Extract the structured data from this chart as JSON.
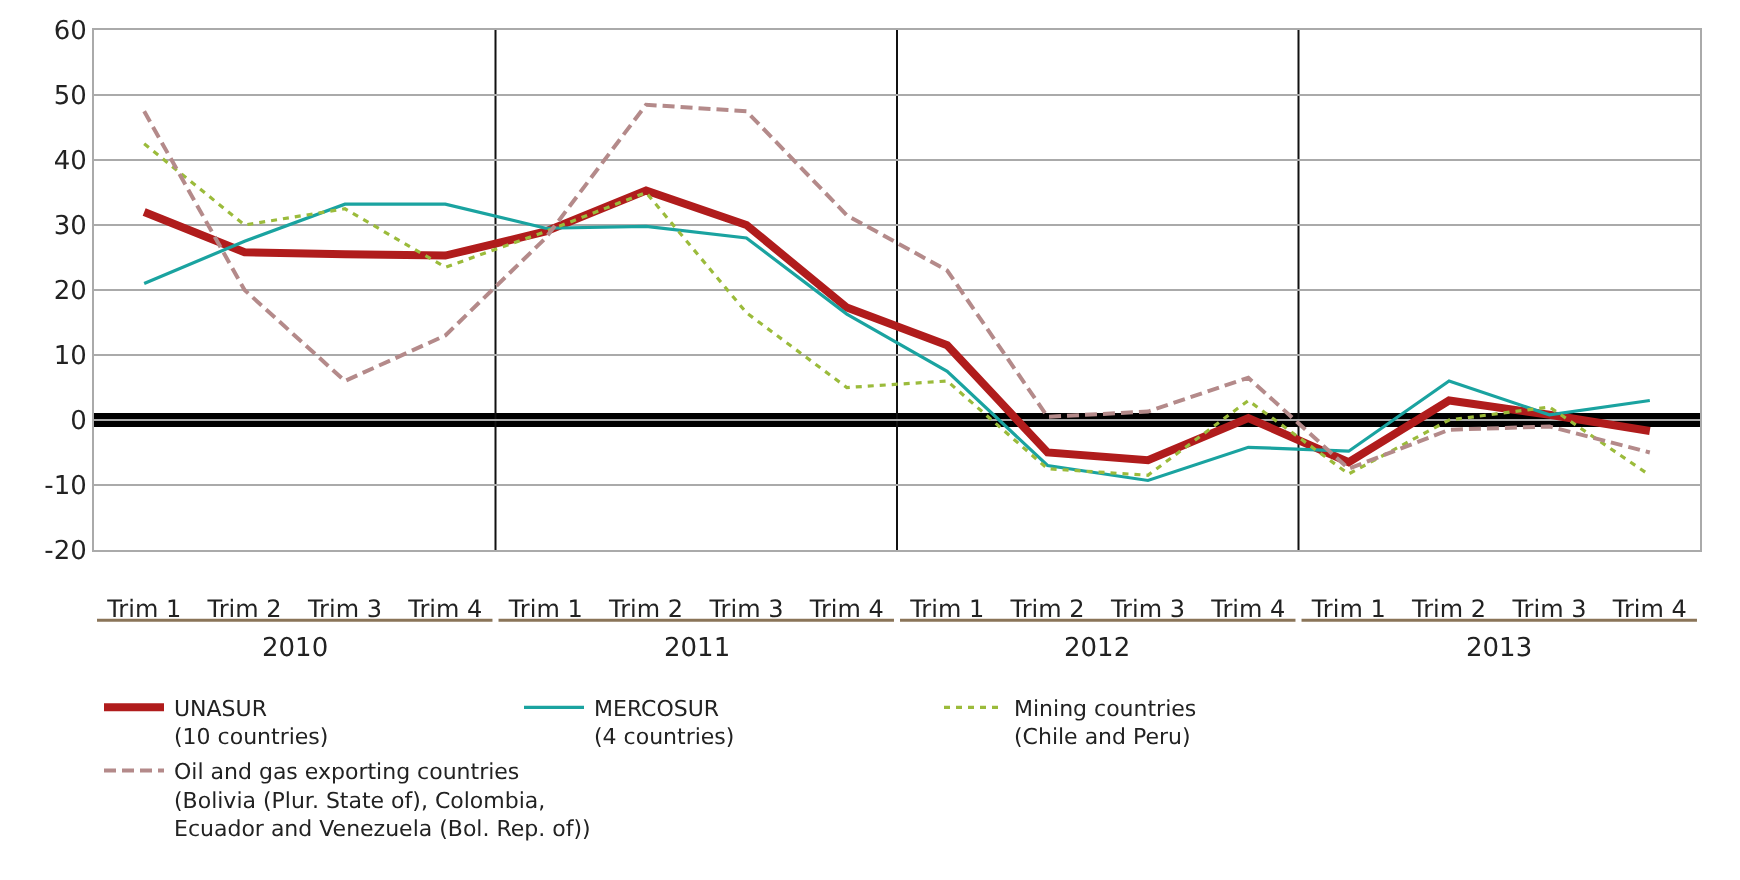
{
  "chart_data": {
    "type": "line",
    "categories": [
      "Trim 1",
      "Trim 2",
      "Trim 3",
      "Trim 4",
      "Trim 1",
      "Trim 2",
      "Trim 3",
      "Trim 4",
      "Trim 1",
      "Trim 2",
      "Trim 3",
      "Trim 4",
      "Trim 1",
      "Trim 2",
      "Trim 3",
      "Trim 4"
    ],
    "annotations": [
      "2010",
      "2011",
      "2012",
      "2013"
    ],
    "series": [
      {
        "name": "UNASUR\n(10 countries)",
        "color": "#b01c1c",
        "line_style": "solid",
        "values": [
          32,
          25.8,
          25.5,
          25.3,
          29,
          35.3,
          30,
          17.3,
          11.5,
          -5,
          -6.2,
          0.3,
          -6.5,
          3,
          0.8,
          -1.7
        ]
      },
      {
        "name": "MERCOSUR\n(4 countries)",
        "color": "#1aa3a0",
        "line_style": "solid",
        "values": [
          21,
          27.5,
          33.2,
          33.2,
          29.5,
          29.8,
          28,
          16.3,
          7.5,
          -7,
          -9.3,
          -4.2,
          -4.8,
          6,
          0.8,
          3
        ]
      },
      {
        "name": "Mining countries\n(Chile and Peru)",
        "color": "#9bbb3b",
        "line_style": "dotted",
        "values": [
          42.5,
          30,
          32.5,
          23.5,
          29,
          35,
          16.5,
          5,
          6,
          -7.5,
          -8.5,
          3,
          -8.3,
          0,
          2,
          -8.5
        ]
      },
      {
        "name": "Oil and gas exporting countries\n(Bolivia (Plur. State of), Colombia,\nEcuador and Venezuela (Bol. Rep. of))",
        "color": "#b48a8a",
        "line_style": "dashed",
        "values": [
          47.5,
          20,
          6,
          13,
          28,
          48.5,
          47.5,
          31.5,
          23,
          0.5,
          1.3,
          6.5,
          -7.5,
          -1.5,
          -1,
          -5
        ]
      }
    ],
    "ylim": [
      -20,
      60
    ],
    "yticks": [
      -20,
      -10,
      0,
      10,
      20,
      30,
      40,
      50,
      60
    ],
    "ref_lines": [
      {
        "axis": "y",
        "value": 0,
        "color": "#000000"
      }
    ],
    "grid": "y",
    "legend": "bottom",
    "marker": "none"
  }
}
